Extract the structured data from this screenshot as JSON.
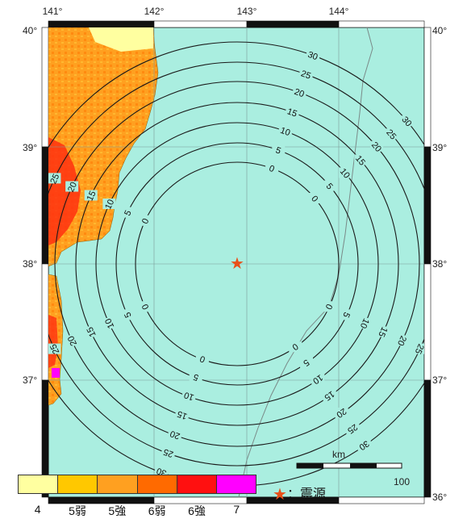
{
  "map": {
    "lon_labels": [
      "141°",
      "142°",
      "143°",
      "144°"
    ],
    "lat_labels": [
      "40°",
      "39°",
      "38°",
      "37°",
      "36°"
    ],
    "contour_levels": [
      0,
      5,
      10,
      15,
      20,
      25,
      30
    ],
    "contour_label_text": [
      "0",
      "5",
      "10",
      "15",
      "20",
      "25",
      "30"
    ],
    "epicenter_marker": "star-icon",
    "scale_bar": {
      "unit": "km",
      "end_label": "100"
    },
    "colors": {
      "sea": "#aaeee0",
      "epicenter": "#e8501a",
      "contour": "#1a1a1a"
    }
  },
  "legend": {
    "intensity_classes": [
      {
        "label": "4",
        "color": "#ffffa0"
      },
      {
        "label": "5弱",
        "color": "#ffc800"
      },
      {
        "label": "5強",
        "color": "#ffa020"
      },
      {
        "label": "6弱",
        "color": "#ff6a00"
      },
      {
        "label": "6強",
        "color": "#ff1010"
      },
      {
        "label": "7",
        "color": "#ff00ff"
      }
    ],
    "epicenter_label": "：震源"
  }
}
